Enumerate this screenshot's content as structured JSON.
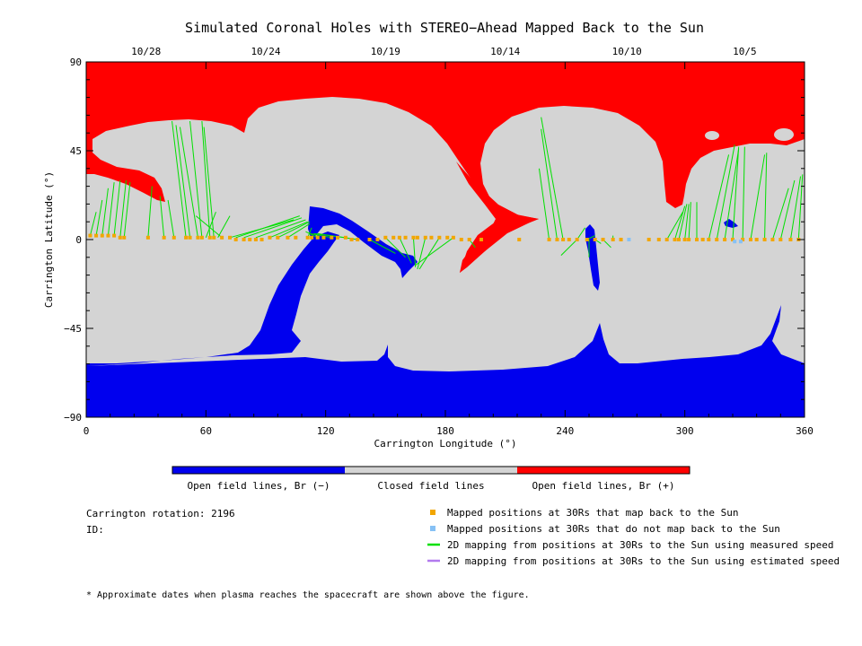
{
  "chart_data": {
    "type": "map",
    "title": "Simulated Coronal Holes with STEREO−Ahead Mapped Back to the Sun",
    "xlabel": "Carrington Longitude (°)",
    "ylabel": "Carrington Latitude (°)",
    "xlim": [
      0,
      360
    ],
    "ylim": [
      -90,
      90
    ],
    "x_ticks": [
      0,
      60,
      120,
      180,
      240,
      300,
      360
    ],
    "y_ticks": [
      {
        "value": 90,
        "label": "90"
      },
      {
        "value": 45,
        "label": "45"
      },
      {
        "value": 0,
        "label": "0"
      },
      {
        "value": -45,
        "label": "−45"
      },
      {
        "value": -90,
        "label": "−90"
      }
    ],
    "top_dates": [
      {
        "label": "10/28",
        "lon": 30
      },
      {
        "label": "10/24",
        "lon": 90
      },
      {
        "label": "10/19",
        "lon": 150
      },
      {
        "label": "10/14",
        "lon": 210
      },
      {
        "label": "10/10",
        "lon": 271
      },
      {
        "label": "10/5",
        "lon": 330
      }
    ],
    "colorbar": [
      {
        "label": "Open field lines, Br (−)",
        "color": "#0000ee"
      },
      {
        "label": "Closed field lines",
        "color": "#d4d4d4"
      },
      {
        "label": "Open field lines, Br (+)",
        "color": "#ff0000"
      }
    ],
    "mapped_positions": {
      "lon": [
        2,
        5,
        8,
        11,
        14,
        17,
        19,
        31,
        39,
        44,
        50,
        52,
        56,
        58,
        62,
        64,
        68,
        72,
        75,
        79,
        82,
        85,
        88,
        92,
        96,
        101,
        105,
        111,
        113,
        116,
        119,
        123,
        126,
        130,
        133,
        136,
        142,
        146,
        150,
        154,
        157,
        160,
        164,
        166,
        170,
        173,
        177,
        181,
        184,
        188,
        192,
        198,
        217,
        232,
        236,
        239,
        242,
        246,
        251,
        255,
        259,
        264,
        268,
        282,
        287,
        291,
        295,
        297,
        300,
        302,
        306,
        309,
        312,
        316,
        320,
        324,
        329,
        333,
        336,
        340,
        344,
        348,
        353,
        357
      ],
      "lat": [
        2,
        2,
        2,
        2,
        2,
        1,
        1,
        1,
        1,
        1,
        1,
        1,
        1,
        1,
        1,
        1,
        1,
        1,
        0,
        0,
        0,
        0,
        0,
        1,
        1,
        1,
        1,
        1,
        1,
        1,
        1,
        1,
        1,
        1,
        0,
        0,
        0,
        0,
        1,
        1,
        1,
        1,
        1,
        1,
        1,
        1,
        1,
        1,
        1,
        0,
        0,
        0,
        0,
        0,
        0,
        0,
        0,
        0,
        0,
        0,
        0,
        0,
        0,
        0,
        0,
        0,
        0,
        0,
        0,
        0,
        0,
        0,
        0,
        0,
        0,
        0,
        0,
        0,
        0,
        0,
        0,
        0,
        0,
        0
      ]
    },
    "unmapped_positions": {
      "lon": [
        272,
        325,
        328
      ],
      "lat": [
        0,
        -1,
        -1
      ]
    },
    "mapping_lines_measured": [
      [
        2,
        2,
        5,
        14
      ],
      [
        5,
        2,
        8,
        20
      ],
      [
        8,
        2,
        11,
        26
      ],
      [
        11,
        2,
        14,
        29
      ],
      [
        14,
        2,
        17,
        30
      ],
      [
        17,
        1,
        20,
        30
      ],
      [
        19,
        1,
        22,
        29
      ],
      [
        31,
        1,
        33,
        27
      ],
      [
        39,
        1,
        37,
        22
      ],
      [
        44,
        1,
        41,
        20
      ],
      [
        50,
        1,
        43,
        60
      ],
      [
        52,
        1,
        45,
        58
      ],
      [
        56,
        1,
        47,
        57
      ],
      [
        58,
        1,
        52,
        60
      ],
      [
        62,
        1,
        58,
        60
      ],
      [
        64,
        1,
        59,
        57
      ],
      [
        68,
        1,
        55,
        12
      ],
      [
        72,
        1,
        104,
        10
      ],
      [
        75,
        1,
        107,
        12
      ],
      [
        79,
        1,
        108,
        11
      ],
      [
        85,
        1,
        110,
        10
      ],
      [
        92,
        1,
        111,
        9
      ],
      [
        96,
        1,
        112,
        9
      ],
      [
        101,
        1,
        112,
        8
      ],
      [
        111,
        1,
        113,
        6
      ],
      [
        116,
        1,
        110,
        4
      ],
      [
        123,
        1,
        112,
        3
      ],
      [
        130,
        1,
        114,
        3
      ],
      [
        136,
        0,
        116,
        3
      ],
      [
        142,
        0,
        155,
        -7
      ],
      [
        150,
        1,
        160,
        -9
      ],
      [
        157,
        1,
        163,
        -12
      ],
      [
        164,
        1,
        165,
        -14
      ],
      [
        170,
        1,
        166,
        -15
      ],
      [
        177,
        1,
        167,
        -15
      ],
      [
        184,
        1,
        165,
        -13
      ],
      [
        192,
        0,
        195,
        -4
      ],
      [
        232,
        0,
        227,
        36
      ],
      [
        236,
        0,
        228,
        56
      ],
      [
        239,
        0,
        228,
        62
      ],
      [
        246,
        0,
        250,
        6
      ],
      [
        251,
        0,
        255,
        2
      ],
      [
        255,
        0,
        258,
        -2
      ],
      [
        259,
        0,
        263,
        -4
      ],
      [
        264,
        0,
        264,
        2
      ],
      [
        291,
        0,
        299,
        14
      ],
      [
        295,
        0,
        300,
        17
      ],
      [
        297,
        0,
        301,
        18
      ],
      [
        300,
        0,
        302,
        18
      ],
      [
        302,
        0,
        303,
        19
      ],
      [
        306,
        0,
        306,
        19
      ],
      [
        312,
        0,
        322,
        43
      ],
      [
        316,
        0,
        325,
        48
      ],
      [
        320,
        0,
        327,
        46
      ],
      [
        324,
        0,
        327,
        47
      ],
      [
        329,
        0,
        330,
        47
      ],
      [
        333,
        0,
        340,
        43
      ],
      [
        340,
        0,
        341,
        44
      ],
      [
        344,
        0,
        352,
        26
      ],
      [
        348,
        0,
        355,
        30
      ],
      [
        353,
        0,
        358,
        32
      ],
      [
        357,
        0,
        359,
        33
      ],
      [
        246,
        0,
        238,
        -8
      ],
      [
        252,
        0,
        252,
        -9
      ],
      [
        60,
        1,
        65,
        14
      ],
      [
        66,
        1,
        72,
        12
      ]
    ]
  },
  "footer": {
    "rotation_label": "Carrington rotation: 2196",
    "id_label": "ID:",
    "legend": [
      {
        "marker": "square",
        "color": "#f2a600",
        "label": "Mapped positions at 30Rs that map back to the Sun"
      },
      {
        "marker": "square",
        "color": "#86c1f5",
        "label": "Mapped positions at 30Rs that do not map back to the Sun"
      },
      {
        "marker": "line",
        "color": "#00e000",
        "label": "2D mapping from positions at 30Rs to the Sun using measured speed"
      },
      {
        "marker": "line",
        "color": "#b27aee",
        "label": "2D mapping from positions at 30Rs to the Sun using estimated speed"
      }
    ],
    "note": "* Approximate dates when plasma reaches the spacecraft are shown above the figure."
  }
}
